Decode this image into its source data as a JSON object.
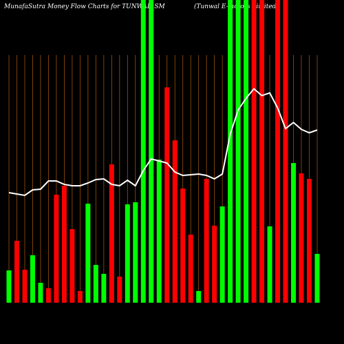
{
  "chart_data": {
    "type": "bar",
    "title": "MunafaSutra  Money Flow  Charts for TUNWAL_SM",
    "subtitle": "(Tunwal E-motors Limited)",
    "values": [
      47,
      90,
      48,
      69,
      29,
      21,
      157,
      170,
      107,
      17,
      144,
      55,
      42,
      201,
      38,
      143,
      146,
      460,
      460,
      208,
      313,
      236,
      166,
      99,
      17,
      180,
      112,
      140,
      460,
      460,
      460,
      460,
      460,
      111,
      460,
      460,
      203,
      188,
      180,
      71
    ],
    "bar_colors": [
      "#00ff00",
      "#ff0000",
      "#ff0000",
      "#00ff00",
      "#00ff00",
      "#ff0000",
      "#ff0000",
      "#ff0000",
      "#ff0000",
      "#ff0000",
      "#00ff00",
      "#00ff00",
      "#00ff00",
      "#ff0000",
      "#ff0000",
      "#00ff00",
      "#00ff00",
      "#00ff00",
      "#00ff00",
      "#00ff00",
      "#ff0000",
      "#ff0000",
      "#ff0000",
      "#ff0000",
      "#00ff00",
      "#ff0000",
      "#ff0000",
      "#00ff00",
      "#00ff00",
      "#00ff00",
      "#00ff00",
      "#ff0000",
      "#ff0000",
      "#00ff00",
      "#ff0000",
      "#ff0000",
      "#00ff00",
      "#ff0000",
      "#ff0000",
      "#00ff00"
    ],
    "line_values": [
      160,
      158,
      156,
      164,
      165,
      177,
      177,
      172,
      170,
      170,
      174,
      179,
      180,
      172,
      170,
      178,
      170,
      192,
      209,
      206,
      203,
      190,
      185,
      186,
      187,
      185,
      180,
      187,
      245,
      280,
      297,
      311,
      301,
      305,
      283,
      253,
      262,
      252,
      247,
      251
    ],
    "line_color": "#ffffff",
    "grid_color": "#a0520a",
    "ylim": [
      0,
      440
    ]
  }
}
